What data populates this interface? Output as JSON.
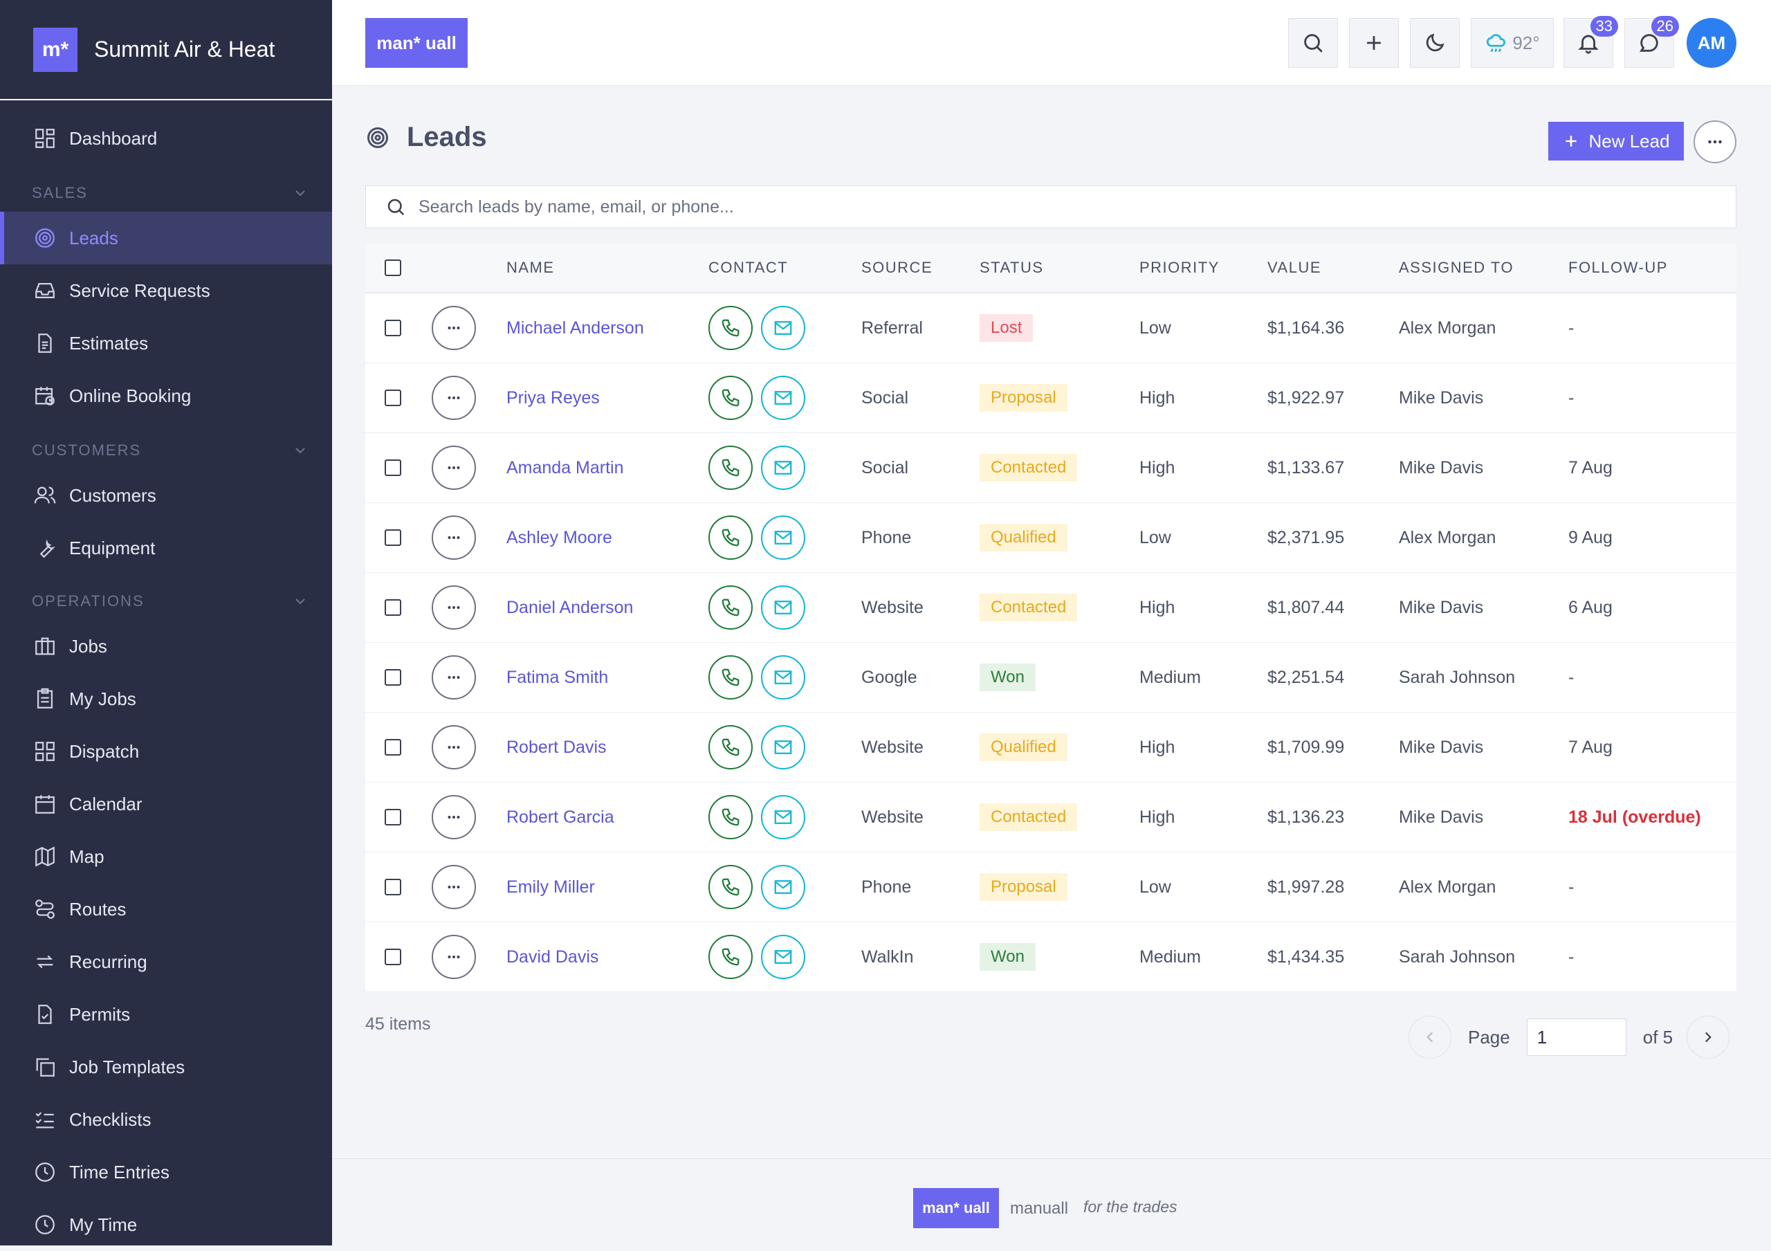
{
  "brand": {
    "logo_text": "m*",
    "name": "Summit Air & Heat"
  },
  "sidebar": {
    "dashboard": "Dashboard",
    "sections": {
      "sales": "SALES",
      "customers": "CUSTOMERS",
      "operations": "OPERATIONS"
    },
    "items": {
      "leads": "Leads",
      "service_requests": "Service Requests",
      "estimates": "Estimates",
      "online_booking": "Online Booking",
      "customers": "Customers",
      "equipment": "Equipment",
      "jobs": "Jobs",
      "my_jobs": "My Jobs",
      "dispatch": "Dispatch",
      "calendar": "Calendar",
      "map": "Map",
      "routes": "Routes",
      "recurring": "Recurring",
      "permits": "Permits",
      "job_templates": "Job Templates",
      "checklists": "Checklists",
      "time_entries": "Time Entries",
      "my_time": "My Time"
    }
  },
  "topbar": {
    "logo_text": "man* uall",
    "weather": "92°",
    "notifications_count": "33",
    "messages_count": "26",
    "avatar_initials": "AM"
  },
  "page": {
    "title": "Leads",
    "new_lead_label": "New Lead",
    "search_placeholder": "Search leads by name, email, or phone..."
  },
  "table": {
    "columns": {
      "name": "NAME",
      "contact": "CONTACT",
      "source": "SOURCE",
      "status": "STATUS",
      "priority": "PRIORITY",
      "value": "VALUE",
      "assigned": "ASSIGNED TO",
      "followup": "FOLLOW-UP"
    },
    "rows": [
      {
        "name": "Michael Anderson",
        "source": "Referral",
        "status": "Lost",
        "priority": "Low",
        "value": "$1,164.36",
        "assigned": "Alex Morgan",
        "followup": "-"
      },
      {
        "name": "Priya Reyes",
        "source": "Social",
        "status": "Proposal",
        "priority": "High",
        "value": "$1,922.97",
        "assigned": "Mike Davis",
        "followup": "-"
      },
      {
        "name": "Amanda Martin",
        "source": "Social",
        "status": "Contacted",
        "priority": "High",
        "value": "$1,133.67",
        "assigned": "Mike Davis",
        "followup": "7 Aug"
      },
      {
        "name": "Ashley Moore",
        "source": "Phone",
        "status": "Qualified",
        "priority": "Low",
        "value": "$2,371.95",
        "assigned": "Alex Morgan",
        "followup": "9 Aug"
      },
      {
        "name": "Daniel Anderson",
        "source": "Website",
        "status": "Contacted",
        "priority": "High",
        "value": "$1,807.44",
        "assigned": "Mike Davis",
        "followup": "6 Aug"
      },
      {
        "name": "Fatima Smith",
        "source": "Google",
        "status": "Won",
        "priority": "Medium",
        "value": "$2,251.54",
        "assigned": "Sarah Johnson",
        "followup": "-"
      },
      {
        "name": "Robert Davis",
        "source": "Website",
        "status": "Qualified",
        "priority": "High",
        "value": "$1,709.99",
        "assigned": "Mike Davis",
        "followup": "7 Aug"
      },
      {
        "name": "Robert Garcia",
        "source": "Website",
        "status": "Contacted",
        "priority": "High",
        "value": "$1,136.23",
        "assigned": "Mike Davis",
        "followup": "18 Jul (overdue)"
      },
      {
        "name": "Emily Miller",
        "source": "Phone",
        "status": "Proposal",
        "priority": "Low",
        "value": "$1,997.28",
        "assigned": "Alex Morgan",
        "followup": "-"
      },
      {
        "name": "David Davis",
        "source": "WalkIn",
        "status": "Won",
        "priority": "Medium",
        "value": "$1,434.35",
        "assigned": "Sarah Johnson",
        "followup": "-"
      }
    ]
  },
  "pagination": {
    "items_count": "45 items",
    "page_label": "Page",
    "current_page": "1",
    "of_label": "of 5"
  },
  "footer": {
    "logo_text": "man* uall",
    "name": "manuall",
    "tagline": "for the trades"
  }
}
